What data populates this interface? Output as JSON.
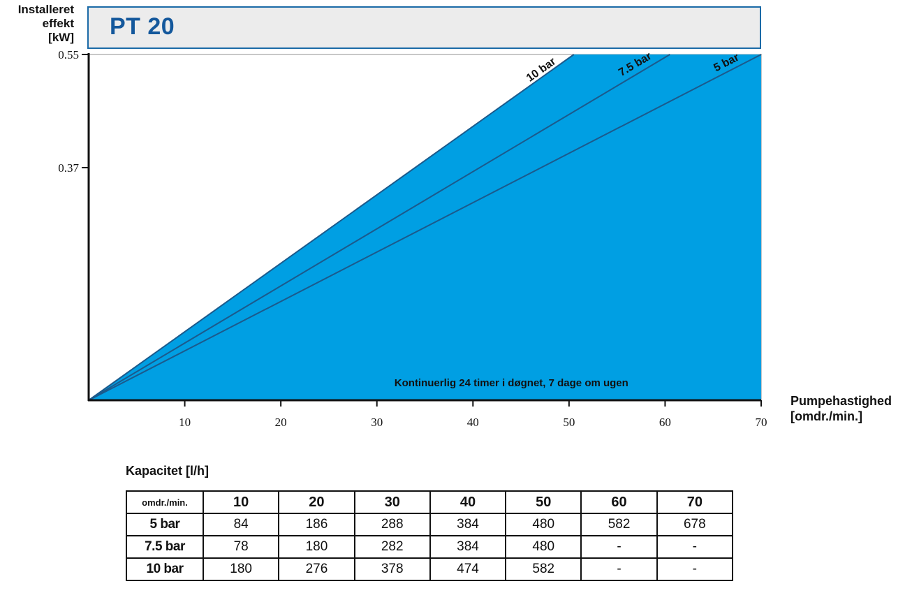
{
  "title": "PT 20",
  "y_axis_label": [
    "Installeret",
    "effekt",
    "[kW]"
  ],
  "x_axis_label": [
    "Pumpehastighed",
    "[omdr./min.]"
  ],
  "chart_data": {
    "type": "area",
    "title": "PT 20",
    "x_ticks": [
      10,
      20,
      30,
      40,
      50,
      60,
      70
    ],
    "xlim": [
      0,
      70
    ],
    "y_ticks": [
      "0.37",
      "0.55"
    ],
    "ylim": [
      0,
      0.55
    ],
    "series": [
      {
        "name": "10 bar",
        "x": [
          0,
          50.5
        ],
        "y": [
          0,
          0.55
        ]
      },
      {
        "name": "7.5 bar",
        "x": [
          0,
          60.5
        ],
        "y": [
          0,
          0.55
        ]
      },
      {
        "name": "5 bar",
        "x": [
          0,
          70
        ],
        "y": [
          0,
          0.55
        ]
      }
    ],
    "fill_color": "#009fe3",
    "line_color": "#1b5a8c",
    "annotation": "Kontinuerlig 24 timer i døgnet, 7 dage om ugen",
    "grid": false
  },
  "capacity": {
    "heading": "Kapacitet [l/h]",
    "corner": "omdr./min.",
    "columns": [
      "10",
      "20",
      "30",
      "40",
      "50",
      "60",
      "70"
    ],
    "rows": [
      {
        "label": "5 bar",
        "values": [
          "84",
          "186",
          "288",
          "384",
          "480",
          "582",
          "678"
        ]
      },
      {
        "label": "7.5 bar",
        "values": [
          "78",
          "180",
          "282",
          "384",
          "480",
          "-",
          "-"
        ]
      },
      {
        "label": "10 bar",
        "values": [
          "180",
          "276",
          "378",
          "474",
          "582",
          "-",
          "-"
        ]
      }
    ]
  }
}
